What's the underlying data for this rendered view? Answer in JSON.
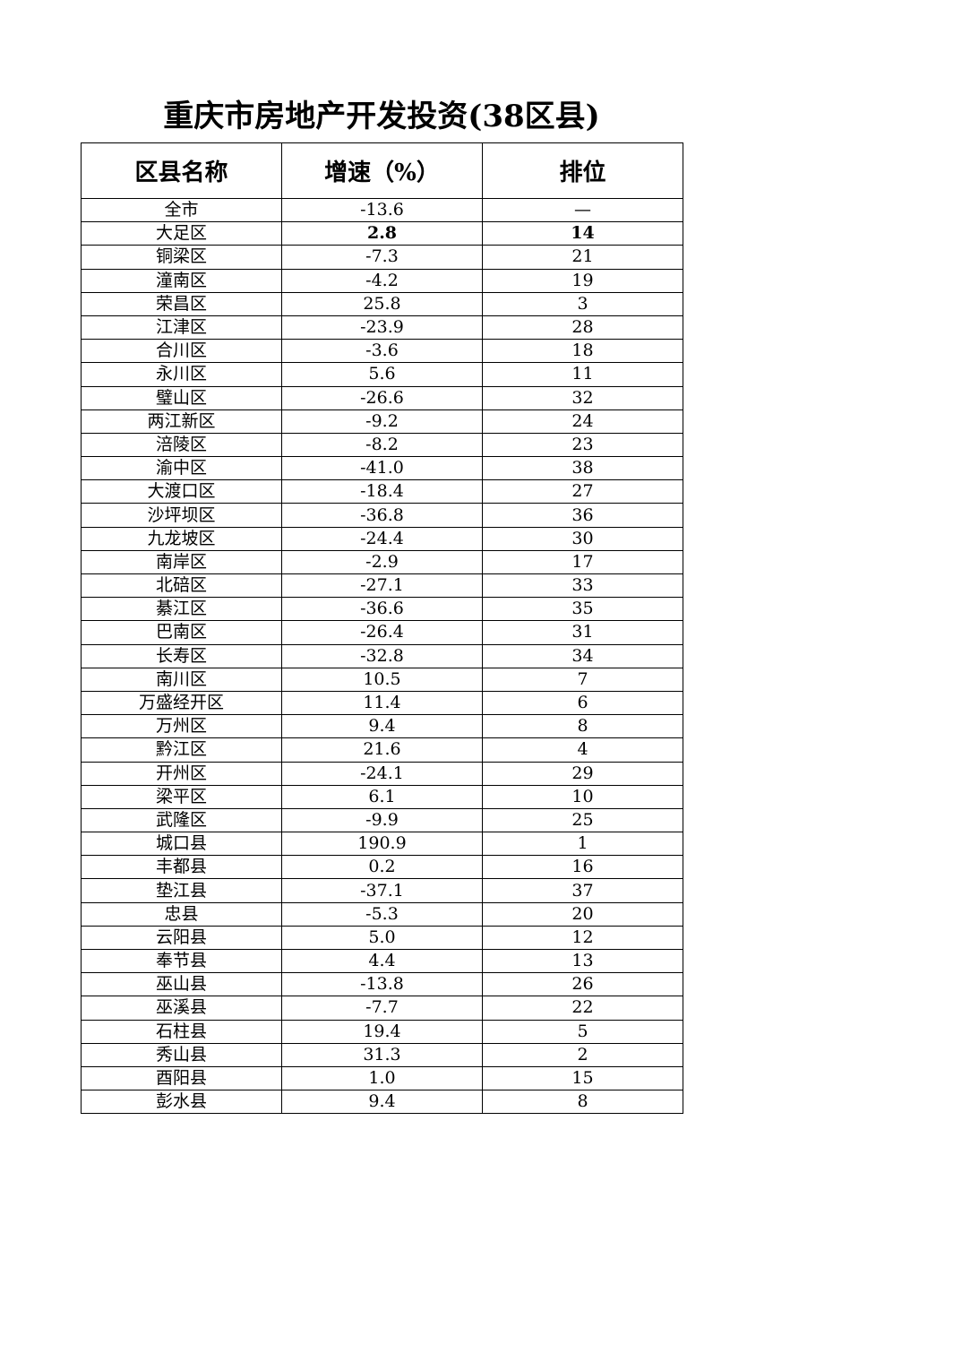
{
  "title": "重庆市房地产开发投资(38区县)",
  "headers": [
    "区县名称",
    "增速（%）",
    "排位"
  ],
  "rows": [
    {
      "name": "全市",
      "growth": "-13.6",
      "rank": "—"
    },
    {
      "name": "大足区",
      "growth": "2.8",
      "rank": "14",
      "highlight": true
    },
    {
      "name": "铜梁区",
      "growth": "-7.3",
      "rank": "21"
    },
    {
      "name": "潼南区",
      "growth": "-4.2",
      "rank": "19"
    },
    {
      "name": "荣昌区",
      "growth": "25.8",
      "rank": "3"
    },
    {
      "name": "江津区",
      "growth": "-23.9",
      "rank": "28"
    },
    {
      "name": "合川区",
      "growth": "-3.6",
      "rank": "18"
    },
    {
      "name": "永川区",
      "growth": "5.6",
      "rank": "11"
    },
    {
      "name": "璧山区",
      "growth": "-26.6",
      "rank": "32"
    },
    {
      "name": "两江新区",
      "growth": "-9.2",
      "rank": "24"
    },
    {
      "name": "涪陵区",
      "growth": "-8.2",
      "rank": "23"
    },
    {
      "name": "渝中区",
      "growth": "-41.0",
      "rank": "38"
    },
    {
      "name": "大渡口区",
      "growth": "-18.4",
      "rank": "27"
    },
    {
      "name": "沙坪坝区",
      "growth": "-36.8",
      "rank": "36"
    },
    {
      "name": "九龙坡区",
      "growth": "-24.4",
      "rank": "30"
    },
    {
      "name": "南岸区",
      "growth": "-2.9",
      "rank": "17"
    },
    {
      "name": "北碚区",
      "growth": "-27.1",
      "rank": "33"
    },
    {
      "name": "綦江区",
      "growth": "-36.6",
      "rank": "35"
    },
    {
      "name": "巴南区",
      "growth": "-26.4",
      "rank": "31"
    },
    {
      "name": "长寿区",
      "growth": "-32.8",
      "rank": "34"
    },
    {
      "name": "南川区",
      "growth": "10.5",
      "rank": "7"
    },
    {
      "name": "万盛经开区",
      "growth": "11.4",
      "rank": "6"
    },
    {
      "name": "万州区",
      "growth": "9.4",
      "rank": "8"
    },
    {
      "name": "黔江区",
      "growth": "21.6",
      "rank": "4"
    },
    {
      "name": "开州区",
      "growth": "-24.1",
      "rank": "29"
    },
    {
      "name": "梁平区",
      "growth": "6.1",
      "rank": "10"
    },
    {
      "name": "武隆区",
      "growth": "-9.9",
      "rank": "25"
    },
    {
      "name": "城口县",
      "growth": "190.9",
      "rank": "1"
    },
    {
      "name": "丰都县",
      "growth": "0.2",
      "rank": "16"
    },
    {
      "name": "垫江县",
      "growth": "-37.1",
      "rank": "37"
    },
    {
      "name": "忠县",
      "growth": "-5.3",
      "rank": "20"
    },
    {
      "name": "云阳县",
      "growth": "5.0",
      "rank": "12"
    },
    {
      "name": "奉节县",
      "growth": "4.4",
      "rank": "13"
    },
    {
      "name": "巫山县",
      "growth": "-13.8",
      "rank": "26"
    },
    {
      "name": "巫溪县",
      "growth": "-7.7",
      "rank": "22"
    },
    {
      "name": "石柱县",
      "growth": "19.4",
      "rank": "5"
    },
    {
      "name": "秀山县",
      "growth": "31.3",
      "rank": "2"
    },
    {
      "name": "酉阳县",
      "growth": "1.0",
      "rank": "15"
    },
    {
      "name": "彭水县",
      "growth": "9.4",
      "rank": "8"
    }
  ]
}
